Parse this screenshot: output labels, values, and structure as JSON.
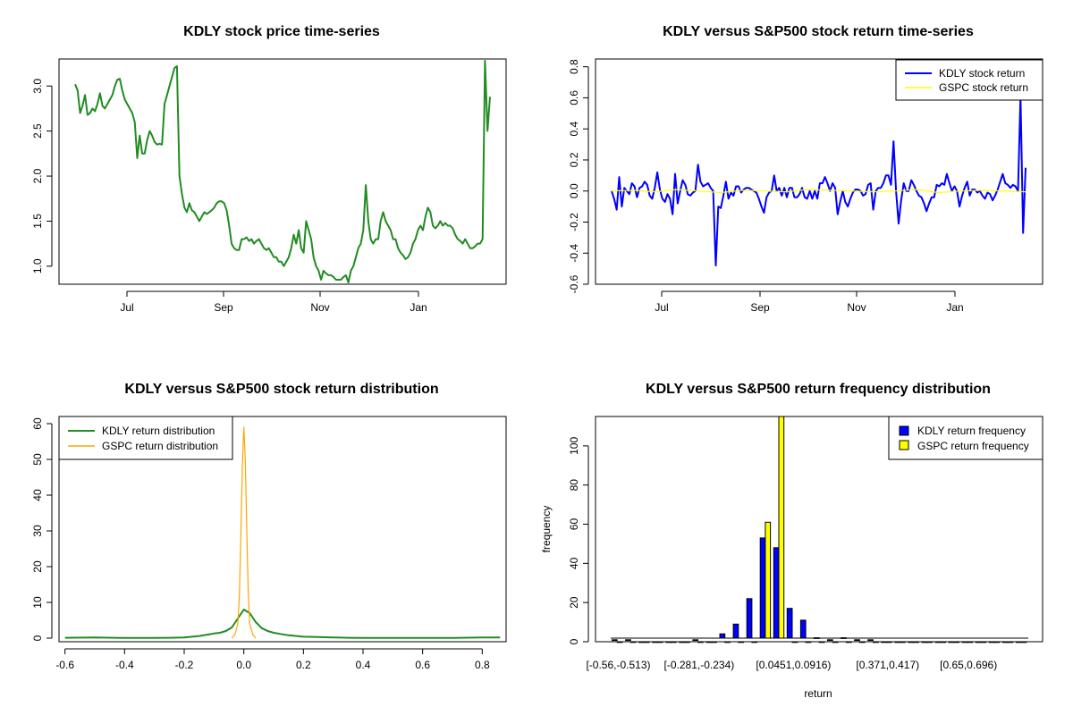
{
  "chart_data": [
    {
      "id": "price",
      "type": "line",
      "title": "KDLY stock price time-series",
      "xlabel": "",
      "ylabel": "",
      "x_ticks": [
        "Jul",
        "Sep",
        "Nov",
        "Jan"
      ],
      "y_ticks": [
        1.0,
        1.5,
        2.0,
        2.5,
        3.0
      ],
      "ylim": [
        0.8,
        3.3
      ],
      "colors": {
        "line": "#228B22"
      },
      "series": [
        {
          "values": [
            3.02,
            2.95,
            2.7,
            2.78,
            2.9,
            2.68,
            2.7,
            2.75,
            2.72,
            2.8,
            2.92,
            2.78,
            2.75,
            2.8,
            2.85,
            2.9,
            3.0,
            3.07,
            3.08,
            2.95,
            2.85,
            2.8,
            2.75,
            2.7,
            2.6,
            2.2,
            2.45,
            2.25,
            2.25,
            2.4,
            2.5,
            2.45,
            2.38,
            2.35,
            2.36,
            2.35,
            2.8,
            2.9,
            3.0,
            3.1,
            3.2,
            3.22,
            2.0,
            1.8,
            1.65,
            1.6,
            1.7,
            1.62,
            1.6,
            1.55,
            1.5,
            1.55,
            1.6,
            1.58,
            1.6,
            1.62,
            1.65,
            1.7,
            1.72,
            1.72,
            1.7,
            1.62,
            1.45,
            1.25,
            1.2,
            1.18,
            1.18,
            1.3,
            1.3,
            1.32,
            1.28,
            1.3,
            1.25,
            1.28,
            1.3,
            1.25,
            1.2,
            1.18,
            1.2,
            1.15,
            1.1,
            1.1,
            1.05,
            1.05,
            1.0,
            1.05,
            1.1,
            1.2,
            1.35,
            1.25,
            1.4,
            1.2,
            1.15,
            1.5,
            1.4,
            1.3,
            1.1,
            1.0,
            0.95,
            0.85,
            0.95,
            0.92,
            0.9,
            0.9,
            0.88,
            0.85,
            0.85,
            0.85,
            0.88,
            0.9,
            0.82,
            0.95,
            1.0,
            1.1,
            1.2,
            1.25,
            1.4,
            1.9,
            1.5,
            1.3,
            1.25,
            1.3,
            1.3,
            1.5,
            1.6,
            1.5,
            1.45,
            1.4,
            1.3,
            1.3,
            1.2,
            1.15,
            1.12,
            1.08,
            1.1,
            1.15,
            1.25,
            1.3,
            1.4,
            1.45,
            1.4,
            1.55,
            1.65,
            1.6,
            1.45,
            1.42,
            1.45,
            1.5,
            1.45,
            1.48,
            1.45,
            1.45,
            1.42,
            1.35,
            1.3,
            1.28,
            1.25,
            1.3,
            1.25,
            1.2,
            1.2,
            1.22,
            1.25,
            1.25,
            1.3,
            3.28,
            2.5,
            2.88
          ]
        }
      ]
    },
    {
      "id": "returns",
      "type": "line",
      "title": "KDLY versus S&P500 stock return time-series",
      "xlabel": "",
      "ylabel": "",
      "x_ticks": [
        "Jul",
        "Sep",
        "Nov",
        "Jan"
      ],
      "y_ticks": [
        -0.6,
        -0.4,
        -0.2,
        0.0,
        0.2,
        0.4,
        0.6,
        0.8
      ],
      "ylim": [
        -0.6,
        0.85
      ],
      "legend": {
        "position": "top-right"
      },
      "series": [
        {
          "name": "KDLY stock return",
          "color": "#0000FF",
          "values": [
            0.0,
            -0.05,
            -0.12,
            0.09,
            -0.1,
            0.02,
            0.0,
            -0.02,
            0.05,
            0.03,
            -0.04,
            0.02,
            0.03,
            0.06,
            0.04,
            -0.03,
            -0.05,
            0.02,
            0.12,
            0.01,
            -0.05,
            -0.07,
            -0.02,
            -0.05,
            -0.15,
            0.11,
            -0.08,
            0.0,
            0.07,
            0.04,
            -0.02,
            -0.03,
            -0.01,
            0.0,
            0.17,
            0.06,
            0.03,
            0.04,
            0.05,
            0.02,
            0.0,
            -0.48,
            -0.1,
            -0.11,
            -0.03,
            0.06,
            -0.05,
            -0.01,
            -0.03,
            0.03,
            0.03,
            -0.01,
            0.01,
            0.02,
            0.02,
            0.01,
            0.0,
            -0.01,
            -0.05,
            -0.1,
            -0.14,
            -0.04,
            -0.01,
            0.0,
            0.1,
            0.0,
            0.02,
            -0.03,
            0.02,
            -0.04,
            0.02,
            0.02,
            -0.04,
            -0.04,
            -0.02,
            0.02,
            -0.04,
            -0.05,
            0.0,
            -0.05,
            0.0,
            -0.05,
            0.05,
            0.05,
            0.09,
            0.05,
            0.0,
            0.05,
            0.02,
            -0.15,
            -0.07,
            0.0,
            -0.07,
            -0.1,
            -0.05,
            -0.01,
            0.01,
            0.01,
            0.0,
            -0.03,
            -0.02,
            0.04,
            0.05,
            -0.12,
            0.0,
            0.02,
            0.02,
            0.05,
            0.1,
            0.1,
            0.04,
            0.32,
            0.0,
            -0.21,
            -0.06,
            0.05,
            0.0,
            0.0,
            0.07,
            0.04,
            0.0,
            -0.03,
            -0.04,
            -0.08,
            -0.13,
            -0.08,
            -0.04,
            -0.04,
            0.04,
            0.03,
            0.05,
            0.04,
            0.11,
            0.05,
            0.0,
            0.03,
            0.0,
            -0.1,
            -0.03,
            0.02,
            0.06,
            -0.03,
            0.01,
            0.01,
            -0.01,
            0.0,
            -0.03,
            -0.05,
            -0.01,
            -0.02,
            -0.06,
            -0.03,
            0.01,
            0.06,
            0.11,
            0.05,
            0.04,
            0.02,
            0.04,
            0.03,
            0.0,
            0.61,
            -0.27,
            0.15
          ]
        },
        {
          "name": "GSPC stock return",
          "color": "#FFFF00",
          "values": [
            0.0,
            0.005,
            -0.005,
            0.01,
            0.0,
            -0.01,
            0.005,
            0.0,
            -0.005,
            0.01,
            0.005,
            0.0,
            -0.005,
            0.0,
            0.01,
            -0.01,
            0.0,
            0.005,
            0.0,
            -0.005
          ]
        }
      ]
    },
    {
      "id": "density",
      "type": "line",
      "title": "KDLY versus S&P500 stock return distribution",
      "xlabel": "",
      "ylabel": "",
      "x_ticks": [
        -0.6,
        -0.4,
        -0.2,
        0.0,
        0.2,
        0.4,
        0.6,
        0.8
      ],
      "y_ticks": [
        0,
        10,
        20,
        30,
        40,
        50,
        60
      ],
      "xlim": [
        -0.62,
        0.88
      ],
      "ylim": [
        -1,
        62
      ],
      "legend": {
        "position": "top-left"
      },
      "series": [
        {
          "name": "KDLY return distribution",
          "color": "#228B22",
          "x": [
            -0.6,
            -0.5,
            -0.4,
            -0.3,
            -0.25,
            -0.2,
            -0.15,
            -0.12,
            -0.1,
            -0.08,
            -0.06,
            -0.04,
            -0.02,
            0.0,
            0.02,
            0.04,
            0.06,
            0.08,
            0.1,
            0.12,
            0.15,
            0.2,
            0.25,
            0.3,
            0.35,
            0.4,
            0.5,
            0.6,
            0.7,
            0.8,
            0.86
          ],
          "values": [
            0.1,
            0.2,
            0.05,
            0.05,
            0.1,
            0.2,
            0.6,
            1.0,
            1.3,
            1.5,
            2.0,
            3.0,
            5.5,
            8.0,
            7.0,
            4.5,
            2.8,
            2.0,
            1.5,
            1.2,
            0.8,
            0.4,
            0.3,
            0.2,
            0.1,
            0.05,
            0.05,
            0.05,
            0.05,
            0.2,
            0.2
          ]
        },
        {
          "name": "GSPC return distribution",
          "color": "#FFA500",
          "x": [
            -0.04,
            -0.03,
            -0.02,
            -0.015,
            -0.01,
            -0.005,
            0.0,
            0.005,
            0.01,
            0.015,
            0.02,
            0.03,
            0.04
          ],
          "values": [
            0.0,
            1.0,
            4.0,
            12.0,
            28.0,
            48.0,
            59.0,
            50.0,
            30.0,
            12.0,
            4.0,
            1.0,
            0.0
          ]
        }
      ]
    },
    {
      "id": "freq",
      "type": "bar",
      "title": "KDLY versus S&P500 return frequency distribution",
      "xlabel": "return",
      "ylabel": "frequency",
      "x_ticks": [
        "[-0.56,-0.513)",
        "[-0.281,-0.234)",
        "[0.0451,0.0916)",
        "[0.371,0.417)",
        "[0.65,0.696)"
      ],
      "y_ticks": [
        0,
        20,
        40,
        60,
        80,
        100
      ],
      "ylim": [
        0,
        115
      ],
      "legend": {
        "position": "top-right"
      },
      "categories_count": 31,
      "label_indices": [
        0,
        6,
        13,
        20,
        26
      ],
      "series": [
        {
          "name": "KDLY return frequency",
          "color": "#0000FF",
          "values": [
            1,
            1,
            0,
            0,
            0,
            0,
            1,
            0,
            4,
            9,
            22,
            53,
            48,
            17,
            11,
            2,
            1,
            2,
            1,
            1,
            0,
            0,
            0,
            0,
            0,
            0,
            0,
            0,
            0,
            0,
            0
          ]
        },
        {
          "name": "GSPC return frequency",
          "color": "#FFFF00",
          "values": [
            0,
            0,
            0,
            0,
            0,
            0,
            0,
            0,
            0,
            0,
            0,
            61,
            116,
            0,
            0,
            0,
            0,
            0,
            0,
            0,
            0,
            0,
            0,
            0,
            0,
            0,
            0,
            0,
            0,
            0,
            0
          ]
        }
      ]
    }
  ]
}
